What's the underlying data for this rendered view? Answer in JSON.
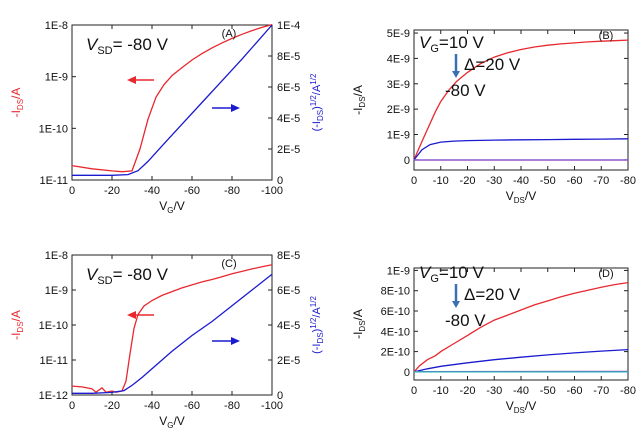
{
  "chart_data": [
    {
      "panel": "(A)",
      "type": "line",
      "annotation": "V_SD= -80 V",
      "xlabel": "V_G/V",
      "ylabel_left": "-I_DS/A",
      "ylabel_right": "(-I_DS)^1/2/A^1/2",
      "xlim": [
        0,
        -100
      ],
      "xticks": [
        "0",
        "-20",
        "-40",
        "-60",
        "-80",
        "-100"
      ],
      "yscale_left": "log",
      "ylim_left": [
        1e-11,
        1e-08
      ],
      "yticks_left": [
        "1E-11",
        "1E-10",
        "1E-9",
        "1E-8"
      ],
      "ylim_right": [
        0,
        0.0001
      ],
      "yticks_right": [
        "0",
        "2E-5",
        "4E-5",
        "6E-5",
        "8E-5",
        "1E-4"
      ],
      "colors": {
        "left": "#e8282e",
        "right": "#1a1ad0"
      },
      "series": [
        {
          "axis": "left",
          "color": "#e8282e",
          "x": [
            0,
            -10,
            -20,
            -25,
            -30,
            -34,
            -38,
            -42,
            -46,
            -50,
            -55,
            -60,
            -65,
            -70,
            -75,
            -80,
            -85,
            -90,
            -95,
            -100
          ],
          "y": [
            1.9e-11,
            1.65e-11,
            1.5e-11,
            1.45e-11,
            1.5e-11,
            4e-11,
            1.5e-10,
            4e-10,
            7e-10,
            1.05e-09,
            1.5e-09,
            2.1e-09,
            2.8e-09,
            3.6e-09,
            4.5e-09,
            5.5e-09,
            6.6e-09,
            7.8e-09,
            9e-09,
            1.02e-08
          ]
        },
        {
          "axis": "right",
          "color": "#1a1ad0",
          "x": [
            0,
            -10,
            -20,
            -28,
            -33,
            -38,
            -45,
            -55,
            -65,
            -75,
            -85,
            -100
          ],
          "y": [
            3e-06,
            3e-06,
            3e-06,
            3.5e-06,
            6e-06,
            1.2e-05,
            2.2e-05,
            3.6e-05,
            5e-05,
            6.4e-05,
            7.8e-05,
            0.0001
          ]
        }
      ],
      "arrows": [
        {
          "points_to": "left",
          "color": "#e8282e"
        },
        {
          "points_to": "right",
          "color": "#1a1ad0"
        }
      ]
    },
    {
      "panel": "(B)",
      "type": "line",
      "annotation_lines": [
        "V_G=10 V",
        "Δ=20 V",
        "-80 V"
      ],
      "xlabel": "V_DS/V",
      "ylabel": "-I_DS/A",
      "xlim": [
        0,
        -80
      ],
      "xticks": [
        "0",
        "-10",
        "-20",
        "-30",
        "-40",
        "-50",
        "-60",
        "-70",
        "-80"
      ],
      "ylim": [
        0,
        5e-09
      ],
      "yticks": [
        "0",
        "1E-9",
        "2E-9",
        "3E-9",
        "4E-9",
        "5E-9"
      ],
      "series": [
        {
          "color": "#e8282e",
          "x": [
            0,
            -2,
            -5,
            -8,
            -10,
            -13,
            -16,
            -20,
            -25,
            -30,
            -35,
            -40,
            -45,
            -50,
            -55,
            -60,
            -65,
            -70,
            -75,
            -80
          ],
          "y": [
            0,
            5e-10,
            1.2e-09,
            1.9e-09,
            2.3e-09,
            2.75e-09,
            3.1e-09,
            3.45e-09,
            3.8e-09,
            4.05e-09,
            4.22e-09,
            4.35e-09,
            4.45e-09,
            4.52e-09,
            4.57e-09,
            4.61e-09,
            4.65e-09,
            4.68e-09,
            4.7e-09,
            4.72e-09
          ]
        },
        {
          "color": "#1a1ad0",
          "x": [
            0,
            -3,
            -6,
            -10,
            -15,
            -20,
            -30,
            -40,
            -50,
            -60,
            -70,
            -80
          ],
          "y": [
            0,
            4e-10,
            6e-10,
            7e-10,
            7.4e-10,
            7.6e-10,
            7.8e-10,
            7.9e-10,
            8e-10,
            8.1e-10,
            8.2e-10,
            8.3e-10
          ]
        },
        {
          "color": "#b040b0",
          "x": [
            0,
            -80
          ],
          "y": [
            -1e-11,
            -1e-11
          ]
        },
        {
          "color": "#8a5cd0",
          "x": [
            0,
            -80
          ],
          "y": [
            0,
            0
          ]
        }
      ]
    },
    {
      "panel": "(C)",
      "type": "line",
      "annotation": "V_SD= -80 V",
      "xlabel": "V_G/V",
      "ylabel_left": "-I_DS/A",
      "ylabel_right": "(-I_DS)^1/2/A^1/2",
      "xlim": [
        0,
        -100
      ],
      "xticks": [
        "0",
        "-20",
        "-40",
        "-60",
        "-80",
        "-100"
      ],
      "yscale_left": "log",
      "ylim_left": [
        1e-12,
        1e-08
      ],
      "yticks_left": [
        "1E-12",
        "1E-11",
        "1E-10",
        "1E-9",
        "1E-8"
      ],
      "ylim_right": [
        0,
        8e-05
      ],
      "yticks_right": [
        "0",
        "2E-5",
        "4E-5",
        "6E-5",
        "8E-5"
      ],
      "colors": {
        "left": "#e8282e",
        "right": "#1a1ad0"
      },
      "series": [
        {
          "axis": "left",
          "color": "#e8282e",
          "x": [
            0,
            -5,
            -10,
            -12,
            -15,
            -17,
            -20,
            -22,
            -25,
            -27,
            -29,
            -31,
            -33,
            -36,
            -40,
            -45,
            -50,
            -55,
            -60,
            -65,
            -70,
            -75,
            -80,
            -85,
            -90,
            -95,
            -100
          ],
          "y": [
            1.8e-12,
            1.7e-12,
            1.5e-12,
            1.2e-12,
            1.6e-12,
            1.2e-12,
            1.3e-12,
            1.2e-12,
            1.3e-12,
            2.5e-12,
            1.5e-11,
            8e-11,
            2e-10,
            3.5e-10,
            5e-10,
            7e-10,
            9e-10,
            1.15e-09,
            1.4e-09,
            1.7e-09,
            2e-09,
            2.4e-09,
            2.9e-09,
            3.4e-09,
            4e-09,
            4.6e-09,
            5.3e-09
          ]
        },
        {
          "axis": "right",
          "color": "#1a1ad0",
          "x": [
            0,
            -10,
            -20,
            -26,
            -30,
            -35,
            -40,
            -50,
            -60,
            -70,
            -80,
            -90,
            -100
          ],
          "y": [
            1e-06,
            1e-06,
            1.5e-06,
            2.5e-06,
            5.5e-06,
            1e-05,
            1.5e-05,
            2.5e-05,
            3.4e-05,
            4.2e-05,
            5.1e-05,
            6e-05,
            6.9e-05
          ]
        }
      ],
      "arrows": [
        {
          "points_to": "left",
          "color": "#e8282e"
        },
        {
          "points_to": "right",
          "color": "#1a1ad0"
        }
      ]
    },
    {
      "panel": "(D)",
      "type": "line",
      "annotation_lines": [
        "V_G=10 V",
        "Δ=20 V",
        "-80 V"
      ],
      "xlabel": "V_DS/V",
      "ylabel": "-I_DS/A",
      "xlim": [
        0,
        -80
      ],
      "xticks": [
        "0",
        "-10",
        "-20",
        "-30",
        "-40",
        "-50",
        "-60",
        "-70",
        "-80"
      ],
      "ylim": [
        0,
        1e-09
      ],
      "yticks": [
        "0",
        "2E-10",
        "4E-10",
        "6E-10",
        "8E-10",
        "1E-9"
      ],
      "series": [
        {
          "color": "#e8282e",
          "x": [
            0,
            -2,
            -5,
            -8,
            -10,
            -15,
            -20,
            -25,
            -30,
            -35,
            -40,
            -45,
            -50,
            -55,
            -60,
            -65,
            -70,
            -75,
            -80
          ],
          "y": [
            0,
            6e-11,
            1.2e-10,
            1.6e-10,
            2e-10,
            2.8e-10,
            3.6e-10,
            4.4e-10,
            5.1e-10,
            5.6e-10,
            6.1e-10,
            6.6e-10,
            7e-10,
            7.4e-10,
            7.75e-10,
            8.05e-10,
            8.35e-10,
            8.6e-10,
            8.8e-10
          ]
        },
        {
          "color": "#1a1ad0",
          "x": [
            0,
            -5,
            -10,
            -20,
            -30,
            -40,
            -50,
            -60,
            -70,
            -80
          ],
          "y": [
            0,
            3e-11,
            5.5e-11,
            9e-11,
            1.2e-10,
            1.45e-10,
            1.67e-10,
            1.87e-10,
            2.05e-10,
            2.2e-10
          ]
        },
        {
          "color": "#b040b0",
          "x": [
            0,
            -80
          ],
          "y": [
            3e-12,
            5e-12
          ]
        },
        {
          "color": "#20b0c0",
          "x": [
            0,
            -80
          ],
          "y": [
            0,
            0
          ]
        }
      ]
    }
  ]
}
